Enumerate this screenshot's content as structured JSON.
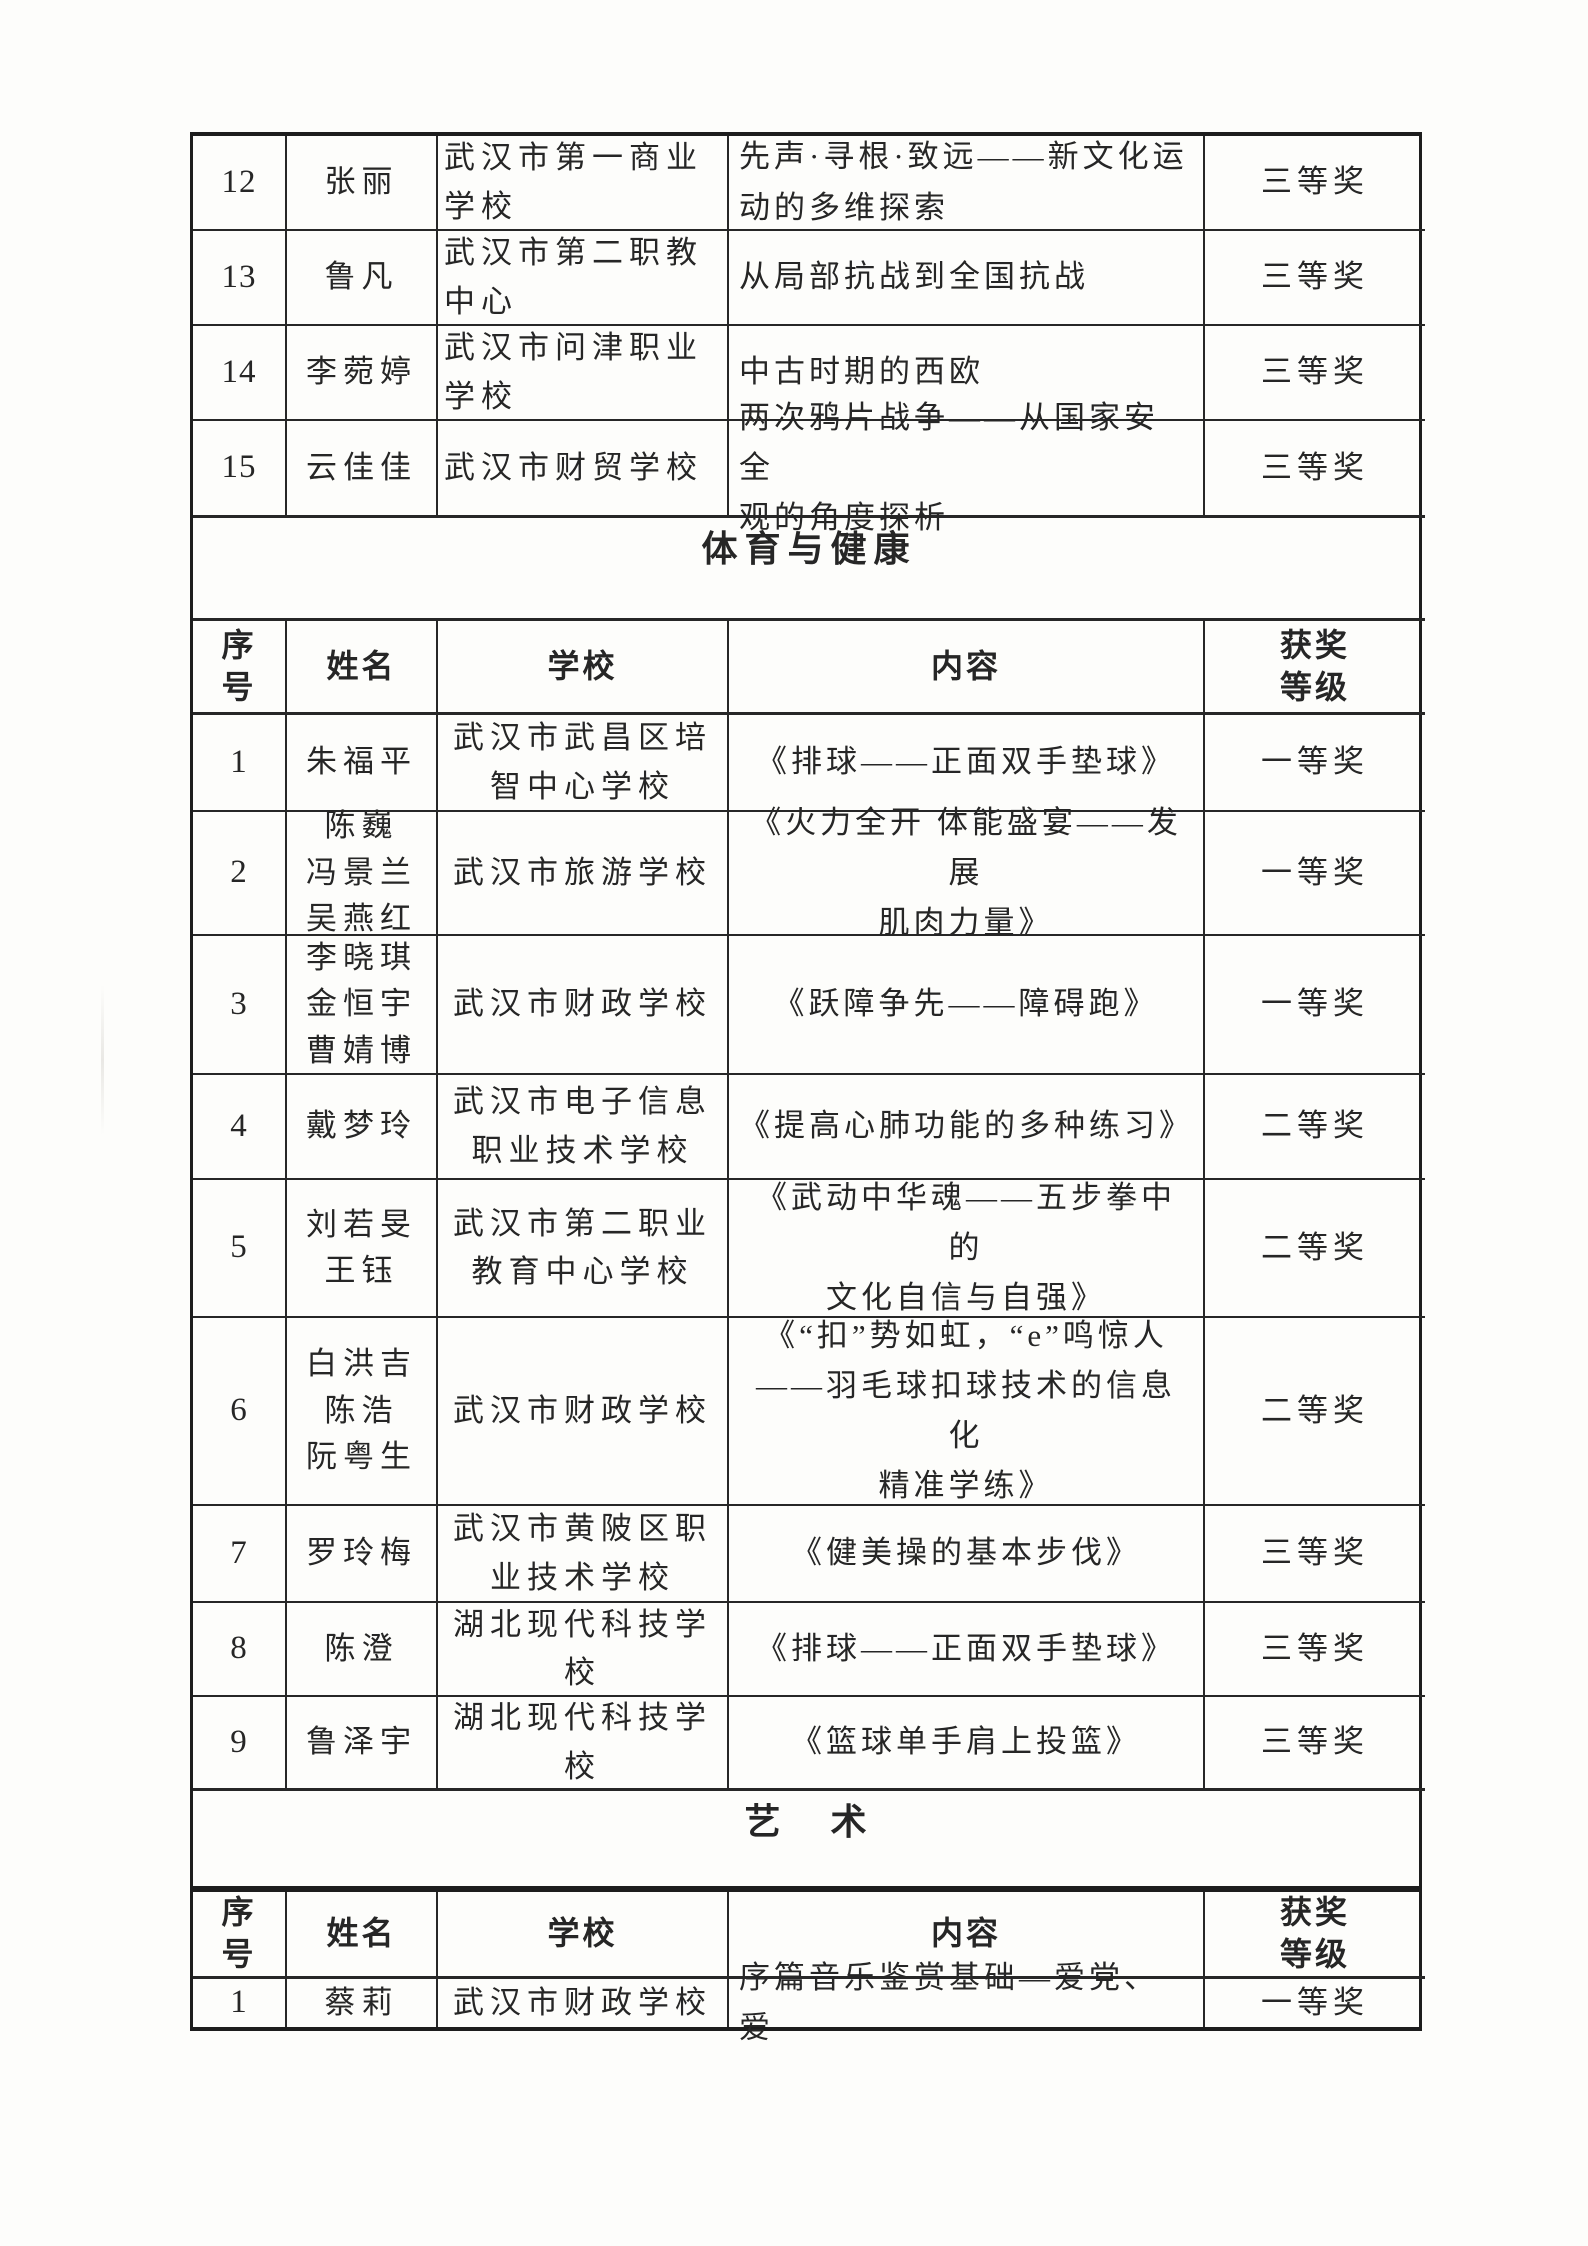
{
  "colors": {
    "paper": "#fdfdfb",
    "ink": "#262626",
    "line": "#272727"
  },
  "header_labels": {
    "serial": "序\n号",
    "name": "姓名",
    "school": "学校",
    "content": "内容",
    "award": "获奖\n等级"
  },
  "sections": {
    "pe_title": "体育与健康",
    "art_title": "艺　术"
  },
  "history_rows": [
    {
      "no": "12",
      "name": "张丽",
      "school": "武汉市第一商业\n学校",
      "content": "先声·寻根·致远——新文化运\n动的多维探索",
      "award": "三等奖"
    },
    {
      "no": "13",
      "name": "鲁凡",
      "school": "武汉市第二职教\n中心",
      "content": "从局部抗战到全国抗战",
      "award": "三等奖"
    },
    {
      "no": "14",
      "name": "李菀婷",
      "school": "武汉市问津职业\n学校",
      "content": "中古时期的西欧",
      "award": "三等奖"
    },
    {
      "no": "15",
      "name": "云佳佳",
      "school": "武汉市财贸学校",
      "content": "两次鸦片战争——从国家安全\n观的角度探析",
      "award": "三等奖"
    }
  ],
  "pe_rows": [
    {
      "no": "1",
      "name": "朱福平",
      "school": "武汉市武昌区培\n智中心学校",
      "content": "《排球——正面双手垫球》",
      "award": "一等奖"
    },
    {
      "no": "2",
      "name": "陈巍\n冯景兰\n吴燕红",
      "school": "武汉市旅游学校",
      "content": "《火力全开 体能盛宴——发展\n肌肉力量》",
      "award": "一等奖"
    },
    {
      "no": "3",
      "name": "李晓琪\n金恒宇\n曹婧博",
      "school": "武汉市财政学校",
      "content": "《跃障争先——障碍跑》",
      "award": "一等奖"
    },
    {
      "no": "4",
      "name": "戴梦玲",
      "school": "武汉市电子信息\n职业技术学校",
      "content": "《提高心肺功能的多种练习》",
      "award": "二等奖"
    },
    {
      "no": "5",
      "name": "刘若旻\n王钰",
      "school": "武汉市第二职业\n教育中心学校",
      "content": "《武动中华魂——五步拳中的\n文化自信与自强》",
      "award": "二等奖"
    },
    {
      "no": "6",
      "name": "白洪吉\n陈浩\n阮粤生",
      "school": "武汉市财政学校",
      "content": "《“扣”势如虹，“e”鸣惊人\n——羽毛球扣球技术的信息化\n精准学练》",
      "award": "二等奖"
    },
    {
      "no": "7",
      "name": "罗玲梅",
      "school": "武汉市黄陂区职\n业技术学校",
      "content": "《健美操的基本步伐》",
      "award": "三等奖"
    },
    {
      "no": "8",
      "name": "陈澄",
      "school": "湖北现代科技学\n校",
      "content": "《排球——正面双手垫球》",
      "award": "三等奖"
    },
    {
      "no": "9",
      "name": "鲁泽宇",
      "school": "湖北现代科技学\n校",
      "content": "《篮球单手肩上投篮》",
      "award": "三等奖"
    }
  ],
  "art_rows": [
    {
      "no": "1",
      "name": "蔡莉",
      "school": "武汉市财政学校",
      "content": "序篇音乐鉴赏基础—爱党、爱",
      "award": "一等奖"
    }
  ]
}
